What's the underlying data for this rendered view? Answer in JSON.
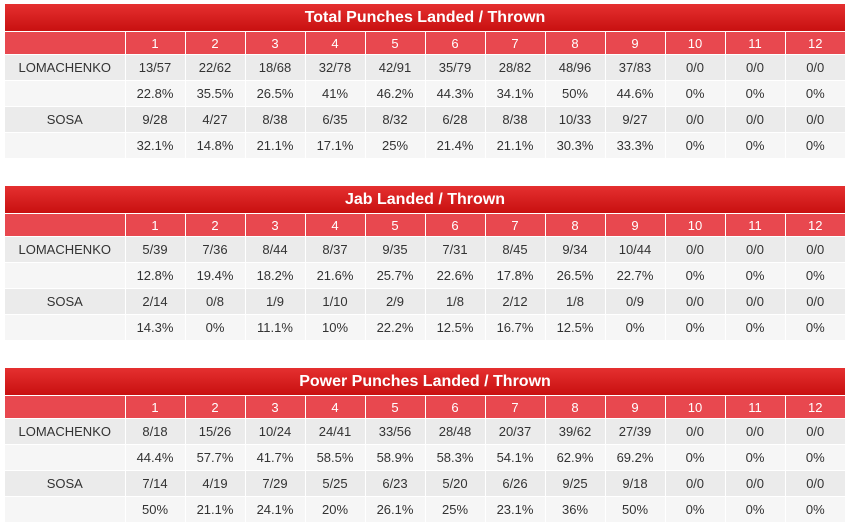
{
  "rounds": [
    "1",
    "2",
    "3",
    "4",
    "5",
    "6",
    "7",
    "8",
    "9",
    "10",
    "11",
    "12"
  ],
  "sections": [
    {
      "title": "Total Punches Landed / Thrown",
      "fighters": [
        {
          "name": "LOMACHENKO",
          "landed": [
            "13/57",
            "22/62",
            "18/68",
            "32/78",
            "42/91",
            "35/79",
            "28/82",
            "48/96",
            "37/83",
            "0/0",
            "0/0",
            "0/0"
          ],
          "pct": [
            "22.8%",
            "35.5%",
            "26.5%",
            "41%",
            "46.2%",
            "44.3%",
            "34.1%",
            "50%",
            "44.6%",
            "0%",
            "0%",
            "0%"
          ]
        },
        {
          "name": "SOSA",
          "landed": [
            "9/28",
            "4/27",
            "8/38",
            "6/35",
            "8/32",
            "6/28",
            "8/38",
            "10/33",
            "9/27",
            "0/0",
            "0/0",
            "0/0"
          ],
          "pct": [
            "32.1%",
            "14.8%",
            "21.1%",
            "17.1%",
            "25%",
            "21.4%",
            "21.1%",
            "30.3%",
            "33.3%",
            "0%",
            "0%",
            "0%"
          ]
        }
      ]
    },
    {
      "title": "Jab Landed / Thrown",
      "fighters": [
        {
          "name": "LOMACHENKO",
          "landed": [
            "5/39",
            "7/36",
            "8/44",
            "8/37",
            "9/35",
            "7/31",
            "8/45",
            "9/34",
            "10/44",
            "0/0",
            "0/0",
            "0/0"
          ],
          "pct": [
            "12.8%",
            "19.4%",
            "18.2%",
            "21.6%",
            "25.7%",
            "22.6%",
            "17.8%",
            "26.5%",
            "22.7%",
            "0%",
            "0%",
            "0%"
          ]
        },
        {
          "name": "SOSA",
          "landed": [
            "2/14",
            "0/8",
            "1/9",
            "1/10",
            "2/9",
            "1/8",
            "2/12",
            "1/8",
            "0/9",
            "0/0",
            "0/0",
            "0/0"
          ],
          "pct": [
            "14.3%",
            "0%",
            "11.1%",
            "10%",
            "22.2%",
            "12.5%",
            "16.7%",
            "12.5%",
            "0%",
            "0%",
            "0%",
            "0%"
          ]
        }
      ]
    },
    {
      "title": "Power Punches Landed / Thrown",
      "fighters": [
        {
          "name": "LOMACHENKO",
          "landed": [
            "8/18",
            "15/26",
            "10/24",
            "24/41",
            "33/56",
            "28/48",
            "20/37",
            "39/62",
            "27/39",
            "0/0",
            "0/0",
            "0/0"
          ],
          "pct": [
            "44.4%",
            "57.7%",
            "41.7%",
            "58.5%",
            "58.9%",
            "58.3%",
            "54.1%",
            "62.9%",
            "69.2%",
            "0%",
            "0%",
            "0%"
          ]
        },
        {
          "name": "SOSA",
          "landed": [
            "7/14",
            "4/19",
            "7/29",
            "5/25",
            "6/23",
            "5/20",
            "6/26",
            "9/25",
            "9/18",
            "0/0",
            "0/0",
            "0/0"
          ],
          "pct": [
            "50%",
            "21.1%",
            "24.1%",
            "20%",
            "26.1%",
            "25%",
            "23.1%",
            "36%",
            "50%",
            "0%",
            "0%",
            "0%"
          ]
        }
      ]
    }
  ]
}
